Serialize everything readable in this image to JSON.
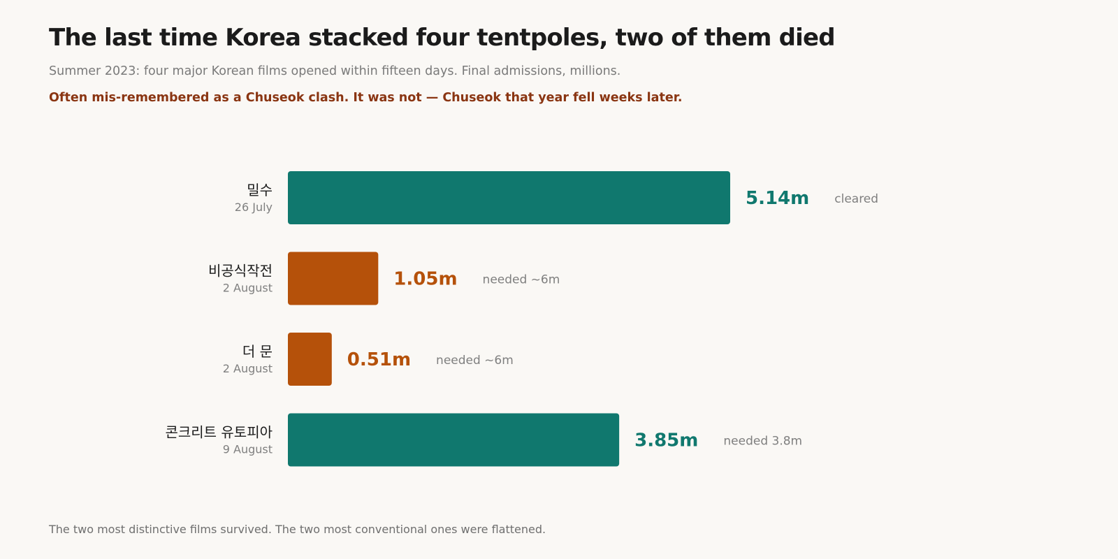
{
  "header": {
    "title": "The last time Korea stacked four tentpoles, two of them died",
    "subtitle": "Summer 2023: four major Korean films opened within fifteen days. Final admissions, millions.",
    "note": "Often mis-remembered as a Chuseok clash. It was not — Chuseok that year fell weeks later."
  },
  "chart_data": {
    "type": "bar",
    "orientation": "horizontal",
    "title": "The last time Korea stacked four tentpoles, two of them died",
    "subtitle": "Summer 2023: four major Korean films opened within fifteen days. Final admissions, millions.",
    "categories": [
      "밀수",
      "비공식작전",
      "더 문",
      "콘크리트 유토피아"
    ],
    "dates": [
      "26 July",
      "2 August",
      "2 August",
      "9 August"
    ],
    "values": [
      5.14,
      1.05,
      0.51,
      3.85
    ],
    "value_labels": [
      "5.14m",
      "1.05m",
      "0.51m",
      "3.85m"
    ],
    "status_labels": [
      "cleared",
      "needed ~6m",
      "needed ~6m",
      "needed 3.8m"
    ],
    "outcomes": [
      "hit",
      "flop",
      "flop",
      "hit"
    ],
    "colors": {
      "hit": "#10786e",
      "flop": "#b5510a"
    },
    "xlim": [
      0,
      8
    ],
    "grid": false,
    "legend": "none"
  },
  "footer": {
    "text": "The two most distinctive films survived. The two most conventional ones were flattened."
  }
}
